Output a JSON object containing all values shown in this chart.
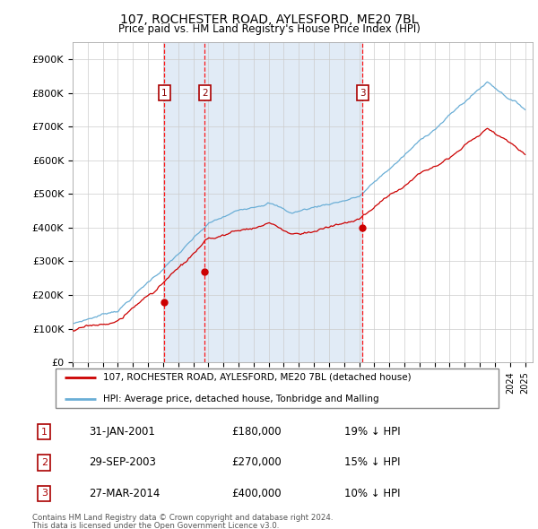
{
  "title": "107, ROCHESTER ROAD, AYLESFORD, ME20 7BL",
  "subtitle": "Price paid vs. HM Land Registry's House Price Index (HPI)",
  "legend_line1": "107, ROCHESTER ROAD, AYLESFORD, ME20 7BL (detached house)",
  "legend_line2": "HPI: Average price, detached house, Tonbridge and Malling",
  "footer_line1": "Contains HM Land Registry data © Crown copyright and database right 2024.",
  "footer_line2": "This data is licensed under the Open Government Licence v3.0.",
  "transactions": [
    {
      "num": 1,
      "date": "31-JAN-2001",
      "price": 180000,
      "hpi_diff": "19% ↓ HPI",
      "date_x": 2001.08
    },
    {
      "num": 2,
      "date": "29-SEP-2003",
      "price": 270000,
      "hpi_diff": "15% ↓ HPI",
      "date_x": 2003.75
    },
    {
      "num": 3,
      "date": "27-MAR-2014",
      "price": 400000,
      "hpi_diff": "10% ↓ HPI",
      "date_x": 2014.23
    }
  ],
  "hpi_color": "#6aaed6",
  "price_color": "#cc0000",
  "background_shade": "#dce8f5",
  "ylim": [
    0,
    950000
  ],
  "yticks": [
    0,
    100000,
    200000,
    300000,
    400000,
    500000,
    600000,
    700000,
    800000,
    900000
  ],
  "xmin": 1995,
  "xmax": 2025.5,
  "shade_x1": 2001.08,
  "shade_x2": 2014.23
}
